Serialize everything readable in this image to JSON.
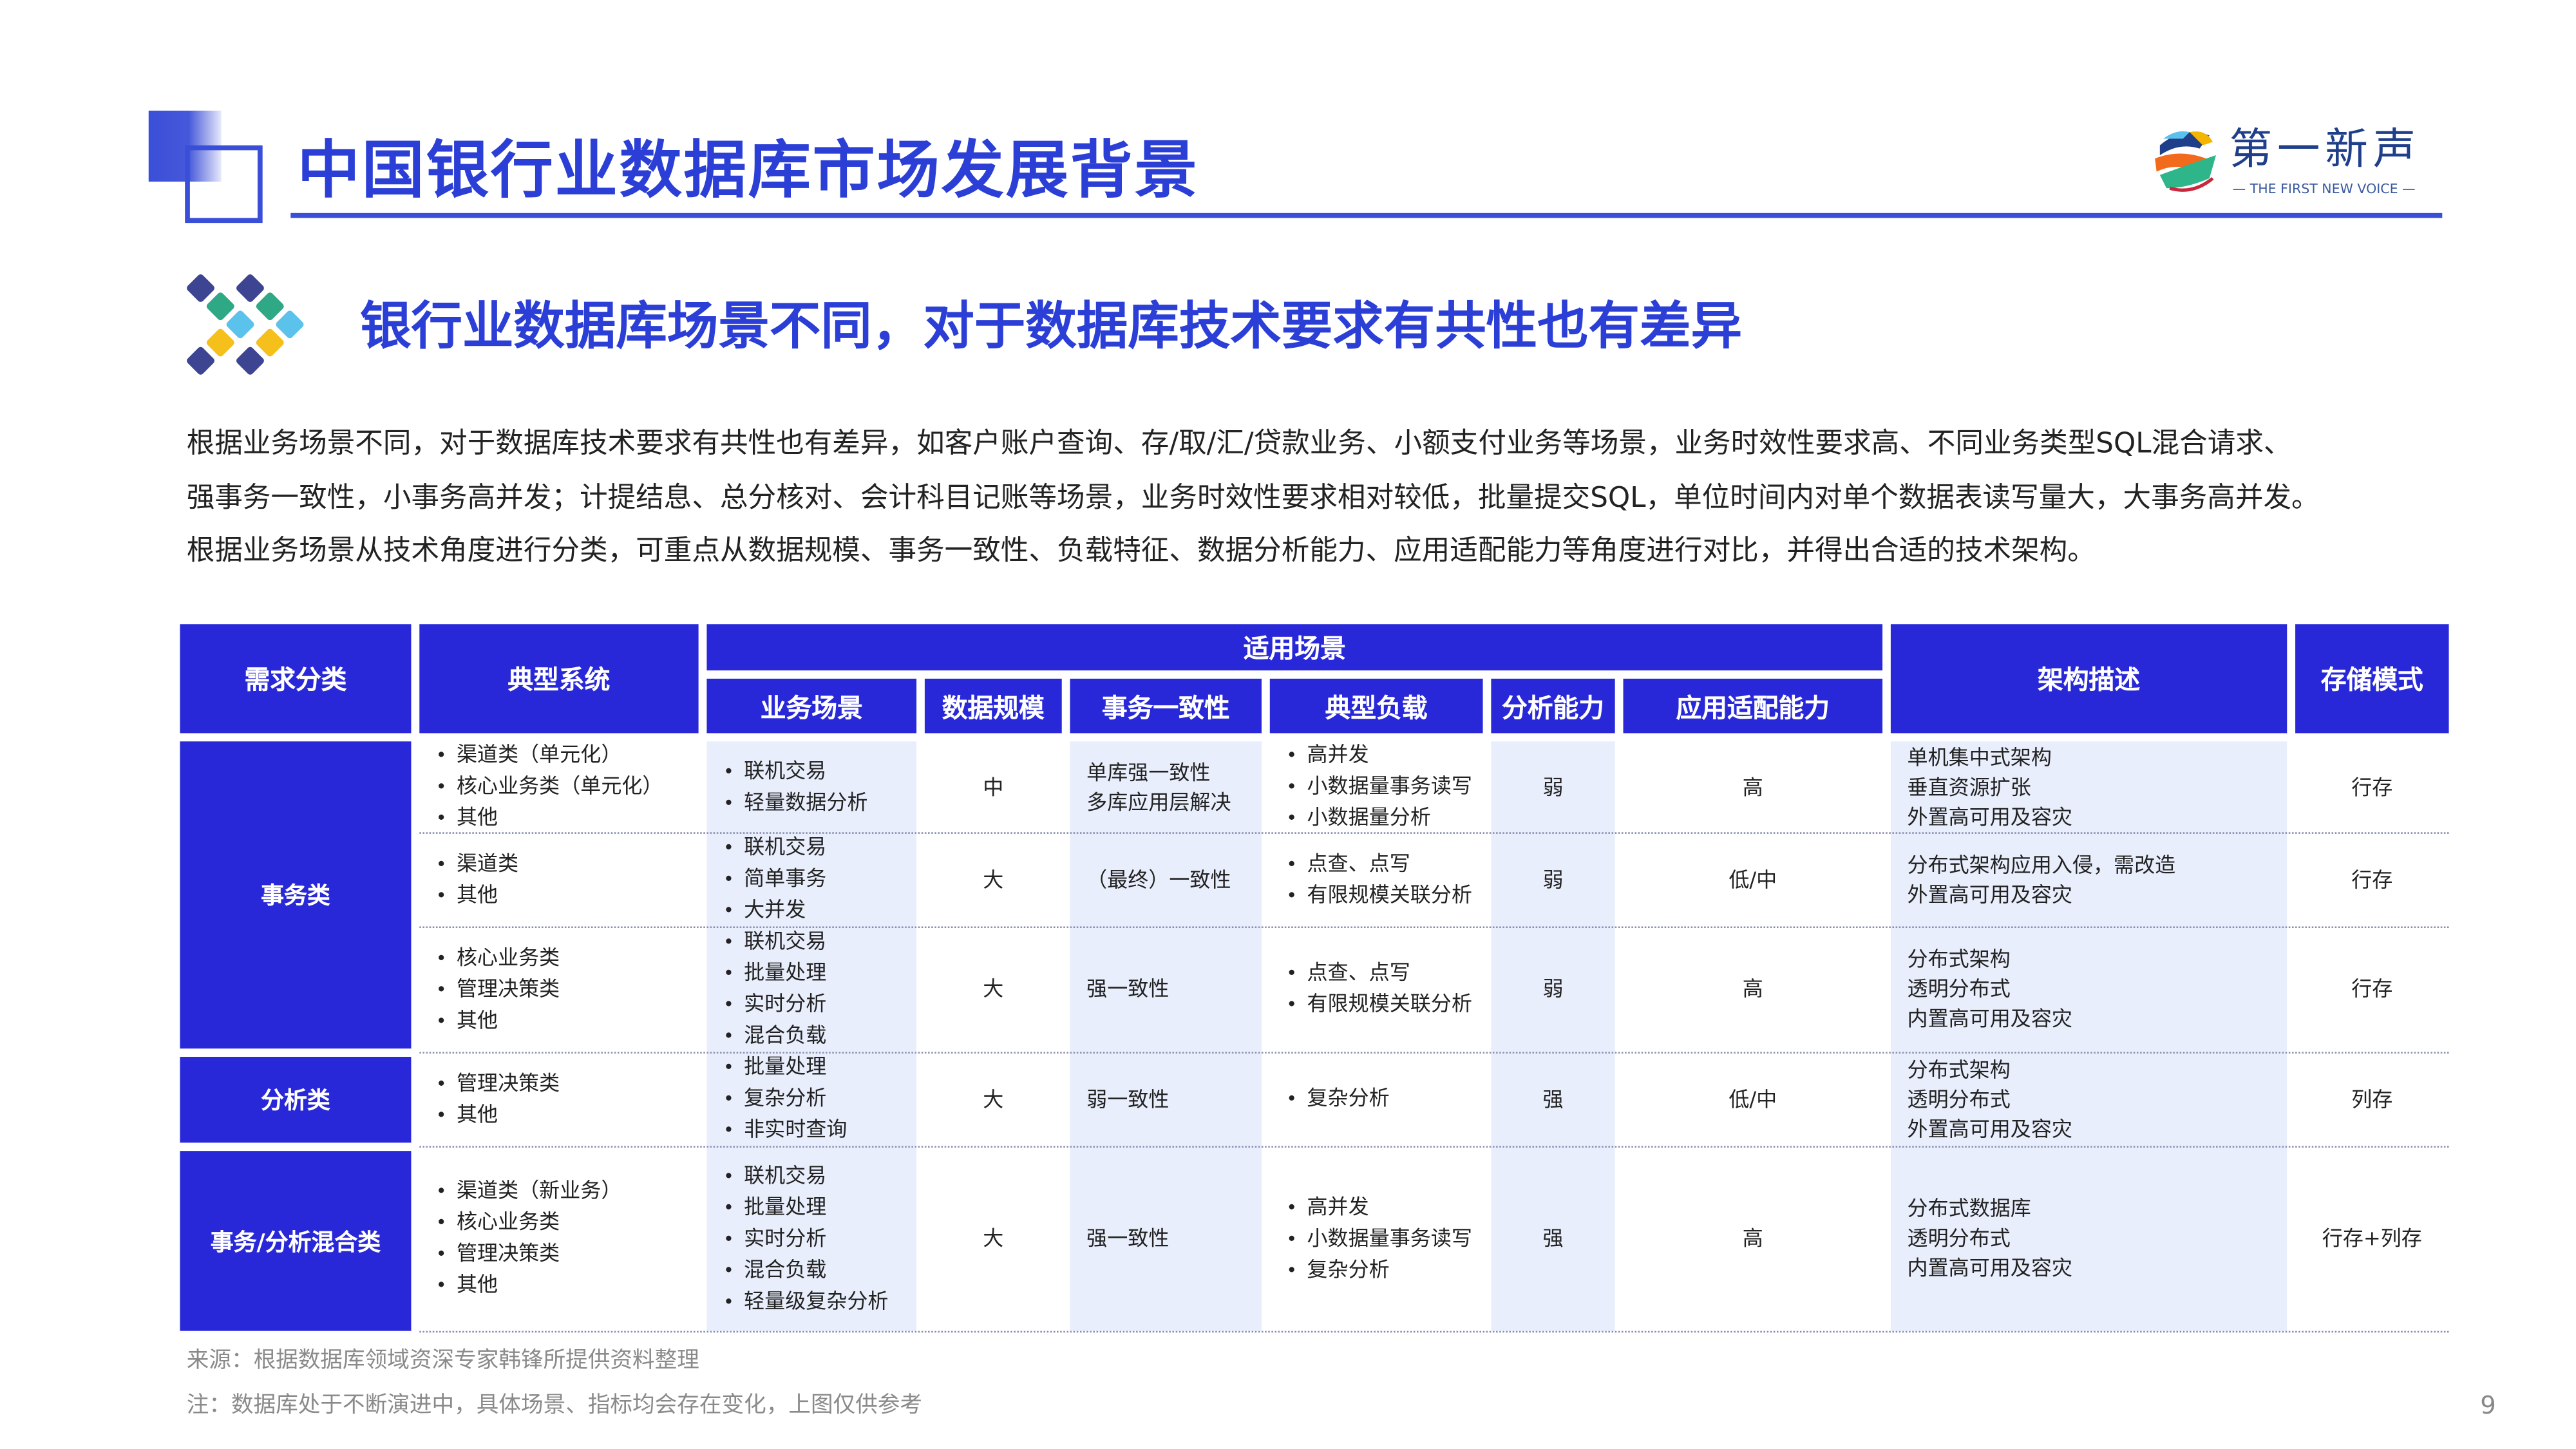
{
  "header": {
    "title": "中国银行业数据库市场发展背景",
    "logo": {
      "cn": "第一新声",
      "en": "— THE FIRST NEW VOICE —"
    }
  },
  "subtitle": "银行业数据库场景不同，对于数据库技术要求有共性也有差异",
  "paragraph": [
    "根据业务场景不同，对于数据库技术要求有共性也有差异，如客户账户查询、存/取/汇/贷款业务、小额支付业务等场景，业务时效性要求高、不同业务类型SQL混合请求、",
    "强事务一致性，小事务高并发；计提结息、总分核对、会计科目记账等场景，业务时效性要求相对较低，批量提交SQL，单位时间内对单个数据表读写量大，大事务高并发。",
    "根据业务场景从技术角度进行分类，可重点从数据规模、事务一致性、负载特征、数据分析能力、应用适配能力等角度进行对比，并得出合适的技术架构。"
  ],
  "table": {
    "headers": {
      "category": "需求分类",
      "system": "典型系统",
      "group": "适用场景",
      "scenario": "业务场景",
      "scale": "数据规模",
      "consistency": "事务一致性",
      "load": "典型负载",
      "analysis": "分析能力",
      "adaptability": "应用适配能力",
      "architecture": "架构描述",
      "storage": "存储模式"
    },
    "categories": [
      {
        "label": "事务类"
      },
      {
        "label": "分析类"
      },
      {
        "label": "事务/分析混合类"
      }
    ],
    "rows": [
      {
        "systems": [
          "渠道类（单元化）",
          "核心业务类（单元化）",
          "其他"
        ],
        "scenarios": [
          "联机交易",
          "轻量数据分析"
        ],
        "scale": "中",
        "consistency": [
          "单库强一致性",
          "多库应用层解决"
        ],
        "load": [
          "高并发",
          "小数据量事务读写",
          "小数据量分析"
        ],
        "analysis": "弱",
        "adaptability": "高",
        "architecture": [
          "单机集中式架构",
          "垂直资源扩张",
          "外置高可用及容灾"
        ],
        "storage": "行存"
      },
      {
        "systems": [
          "渠道类",
          "其他"
        ],
        "scenarios": [
          "联机交易",
          "简单事务",
          "大并发"
        ],
        "scale": "大",
        "consistency": [
          "（最终）一致性"
        ],
        "load": [
          "点查、点写",
          "有限规模关联分析"
        ],
        "analysis": "弱",
        "adaptability": "低/中",
        "architecture": [
          "分布式架构应用入侵，需改造",
          "外置高可用及容灾"
        ],
        "storage": "行存"
      },
      {
        "systems": [
          "核心业务类",
          "管理决策类",
          "其他"
        ],
        "scenarios": [
          "联机交易",
          "批量处理",
          "实时分析",
          "混合负载"
        ],
        "scale": "大",
        "consistency": [
          "强一致性"
        ],
        "load": [
          "点查、点写",
          "有限规模关联分析"
        ],
        "analysis": "弱",
        "adaptability": "高",
        "architecture": [
          "分布式架构",
          "透明分布式",
          "内置高可用及容灾"
        ],
        "storage": "行存"
      },
      {
        "systems": [
          "管理决策类",
          "其他"
        ],
        "scenarios": [
          "批量处理",
          "复杂分析",
          "非实时查询"
        ],
        "scale": "大",
        "consistency": [
          "弱一致性"
        ],
        "load": [
          "复杂分析"
        ],
        "analysis": "强",
        "adaptability": "低/中",
        "architecture": [
          "分布式架构",
          "透明分布式",
          "外置高可用及容灾"
        ],
        "storage": "列存"
      },
      {
        "systems": [
          "渠道类（新业务）",
          "核心业务类",
          "管理决策类",
          "其他"
        ],
        "scenarios": [
          "联机交易",
          "批量处理",
          "实时分析",
          "混合负载",
          "轻量级复杂分析"
        ],
        "scale": "大",
        "consistency": [
          "强一致性"
        ],
        "load": [
          "高并发",
          "小数据量事务读写",
          "复杂分析"
        ],
        "analysis": "强",
        "adaptability": "高",
        "architecture": [
          "分布式数据库",
          "透明分布式",
          "内置高可用及容灾"
        ],
        "storage": "行存+列存"
      }
    ]
  },
  "footer": {
    "source": "来源：根据数据库领域资深专家韩锋所提供资料整理",
    "note": "注：数据库处于不断演进中，具体场景、指标均会存在变化，上图仅供参考",
    "page_number": "9"
  },
  "colors": {
    "primary": "#2828d8",
    "title": "#2b3fd6",
    "band": "#e9eefc"
  }
}
